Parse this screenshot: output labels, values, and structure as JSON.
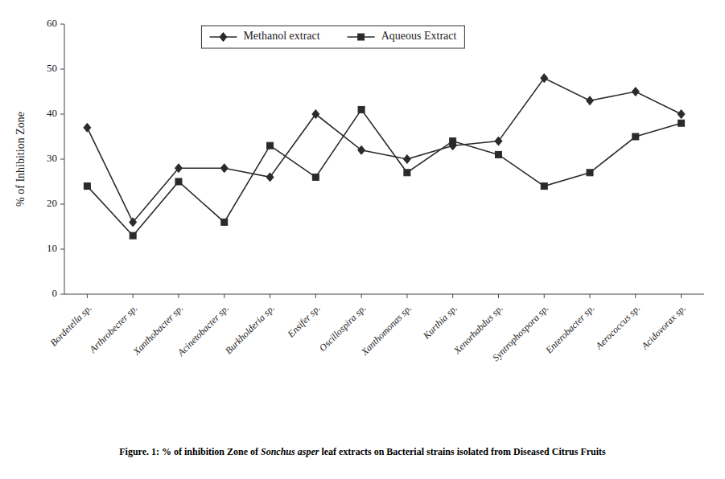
{
  "chart_data": {
    "type": "line",
    "categories": [
      "Bordetella sp.",
      "Arthrobecter sp.",
      "Xanthobacter sp.",
      "Acinetobacter sp.",
      "Burkholderia sp.",
      "Ensifer sp.",
      "Oscillospira sp.",
      "Xanthomonas sp.",
      "Kurthia sp.",
      "Xenorhabdus sp.",
      "Syntrophospora sp.",
      "Enterobacter sp.",
      "Aerococcus sp.",
      "Acidovorax sp."
    ],
    "series": [
      {
        "name": "Methanol extract",
        "color": "#2b2b2b",
        "marker": "diamond",
        "line_style": "solid",
        "values": [
          37,
          16,
          28,
          28,
          26,
          40,
          32,
          30,
          33,
          34,
          48,
          43,
          45,
          40
        ]
      },
      {
        "name": "Aqueous Extract",
        "color": "#2b2b2b",
        "marker": "square",
        "line_style": "solid",
        "values": [
          24,
          13,
          25,
          16,
          33,
          26,
          41,
          27,
          34,
          31,
          24,
          27,
          35,
          38
        ]
      }
    ],
    "y_label": "% of Inhibition Zone",
    "caption": [
      "Figure. 1: % of inhibition Zone of ",
      "Sonchus asper",
      " leaf extracts on Bacterial strains isolated from Diseased Citrus Fruits"
    ],
    "ylim": [
      0,
      60
    ],
    "yticks": [
      0,
      10,
      20,
      30,
      40,
      50,
      60
    ],
    "grid": false,
    "legend": "top"
  }
}
